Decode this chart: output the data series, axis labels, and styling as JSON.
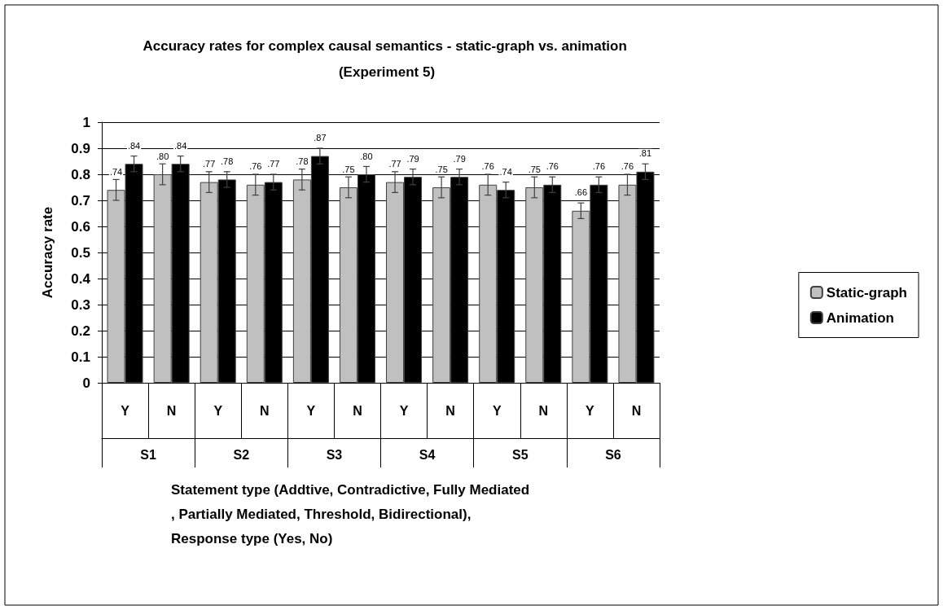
{
  "chart_data": {
    "type": "bar",
    "title": "Accuracy rates for complex causal semantics - static-graph vs. animation (Experiment 5)",
    "xlabel": "Statement type (Addtive, Contradictive, Fully Mediated, Partially Mediated, Threshold, Bidirectional), Response type (Yes, No)",
    "ylabel": "Accuracy rate",
    "categories": [
      "Y",
      "N",
      "Y",
      "N",
      "Y",
      "N",
      "Y",
      "N",
      "Y",
      "N",
      "Y",
      "N"
    ],
    "annotations": [
      "S1",
      "S2",
      "S3",
      "S4",
      "S5",
      "S6"
    ],
    "series": [
      {
        "name": "Static-graph",
        "color": "#c0c0c0",
        "values": [
          0.74,
          0.8,
          0.77,
          0.76,
          0.78,
          0.75,
          0.77,
          0.75,
          0.76,
          0.75,
          0.66,
          0.76
        ],
        "errors": [
          0.04,
          0.04,
          0.04,
          0.04,
          0.04,
          0.04,
          0.04,
          0.04,
          0.04,
          0.04,
          0.03,
          0.04
        ],
        "value_labels": [
          ".74",
          ".80",
          ".77",
          ".76",
          ".78",
          ".75",
          ".77",
          ".75",
          ".76",
          ".75",
          ".66",
          ".76"
        ]
      },
      {
        "name": "Animation",
        "color": "#000000",
        "values": [
          0.84,
          0.84,
          0.78,
          0.77,
          0.87,
          0.8,
          0.79,
          0.79,
          0.74,
          0.76,
          0.76,
          0.81
        ],
        "errors": [
          0.03,
          0.03,
          0.03,
          0.03,
          0.03,
          0.03,
          0.03,
          0.03,
          0.03,
          0.03,
          0.03,
          0.03
        ],
        "value_labels": [
          ".84",
          ".84",
          ".78",
          ".77",
          ".87",
          ".80",
          ".79",
          ".79",
          ".74",
          ".76",
          ".76",
          ".81"
        ]
      }
    ],
    "ylim": [
      0,
      1
    ],
    "yticks": [
      0,
      0.1,
      0.2,
      0.3,
      0.4,
      0.5,
      0.6,
      0.7,
      0.8,
      0.9,
      1
    ],
    "grid": "y",
    "legend": "right"
  }
}
